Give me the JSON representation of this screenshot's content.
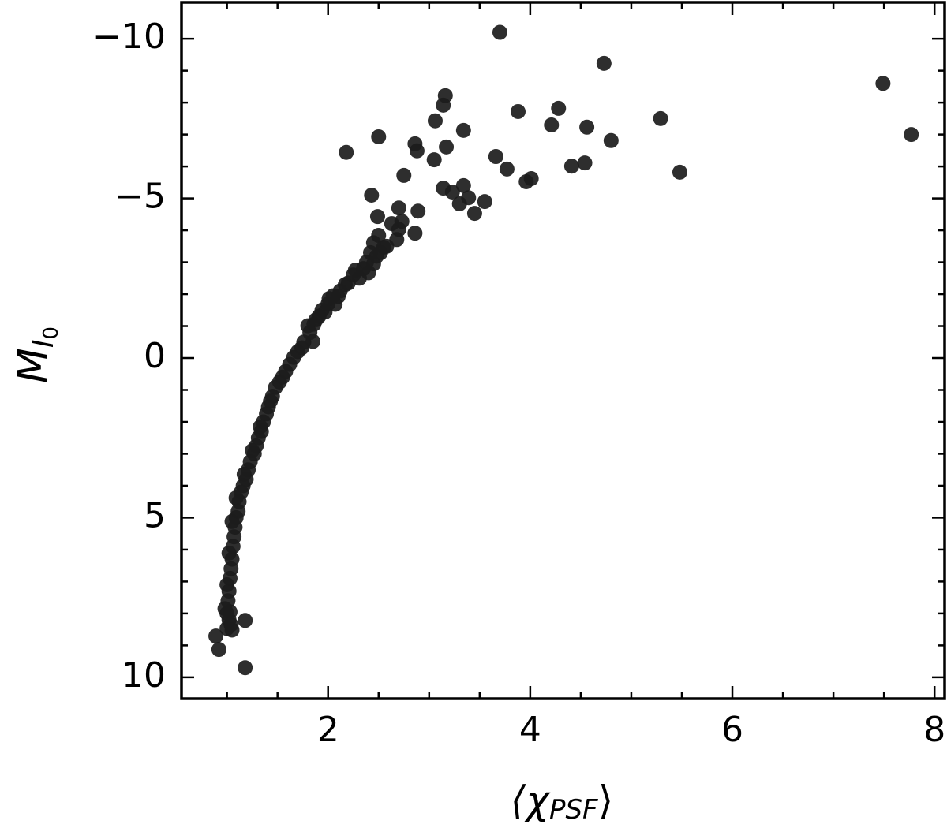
{
  "chart_data": {
    "type": "scatter",
    "xlabel": [
      "⟨χ",
      "PSF",
      "⟩"
    ],
    "ylabel": [
      "M",
      "I",
      "0"
    ],
    "color": "#1c1c1c",
    "xlim": [
      0.55,
      8.1
    ],
    "ylim": [
      10.67,
      -11.14
    ],
    "xticks": [
      2,
      4,
      6,
      8
    ],
    "yticks": [
      {
        "value": -10,
        "label": "−10"
      },
      {
        "value": -5,
        "label": "−5"
      },
      0,
      5,
      10
    ],
    "xminorticks": [
      1,
      1.5,
      2.5,
      3,
      3.5,
      4.5,
      5,
      5.5,
      6.5,
      7,
      7.5
    ],
    "yminorticks": [
      -9,
      -8,
      -7,
      -6,
      -4,
      -3,
      -2,
      -1,
      1,
      2,
      3,
      4,
      6,
      7,
      8,
      9
    ],
    "x": [
      3.7,
      4.73,
      7.49,
      7.77,
      5.29,
      5.48,
      4.8,
      4.56,
      4.54,
      4.41,
      4.28,
      4.21,
      3.88,
      4.01,
      3.96,
      3.77,
      3.66,
      3.55,
      3.45,
      3.39,
      3.34,
      3.3,
      3.34,
      3.16,
      3.14,
      3.17,
      3.06,
      3.05,
      3.14,
      3.23,
      2.18,
      2.5,
      2.86,
      2.88,
      2.75,
      2.43,
      2.49,
      2.7,
      2.89,
      2.63,
      2.73,
      2.7,
      2.86,
      2.68,
      2.5,
      2.45,
      2.55,
      2.48,
      2.45,
      2.4,
      2.27,
      2.31,
      2.17,
      2.1,
      2.01,
      2.07,
      1.97,
      1.91,
      1.86,
      1.8,
      1.85,
      1.74,
      1.66,
      1.58,
      1.48,
      1.41,
      1.33,
      1.25,
      1.17,
      1.09,
      1.05,
      1.02,
      1.0,
      0.98,
      1.0,
      1.05,
      0.89,
      0.92,
      1.18,
      1.18,
      1.62,
      1.55,
      1.52,
      1.45,
      1.43,
      1.39,
      1.36,
      1.34,
      1.31,
      1.29,
      1.27,
      1.23,
      1.21,
      1.19,
      1.16,
      1.14,
      1.12,
      1.11,
      1.09,
      1.08,
      1.07,
      1.06,
      1.05,
      1.04,
      1.03,
      1.02,
      1.01,
      1.0,
      1.02,
      1.03,
      1.04,
      1.7,
      1.76,
      1.82,
      1.88,
      1.94,
      2.0,
      2.05,
      2.12,
      2.2,
      2.25,
      2.35,
      2.38,
      2.42,
      2.52,
      2.58
    ],
    "values": [
      -10.2,
      -9.23,
      -8.6,
      -7.0,
      -7.5,
      -5.82,
      -6.81,
      -7.23,
      -6.11,
      -6.01,
      -7.82,
      -7.3,
      -7.72,
      -5.62,
      -5.52,
      -5.92,
      -6.31,
      -4.9,
      -4.53,
      -5.02,
      -5.4,
      -4.83,
      -7.13,
      -8.22,
      -7.92,
      -6.61,
      -7.43,
      -6.21,
      -5.32,
      -5.2,
      -6.44,
      -6.93,
      -6.71,
      -6.49,
      -5.72,
      -5.1,
      -4.43,
      -4.7,
      -4.6,
      -4.21,
      -4.28,
      -4.03,
      -3.91,
      -3.71,
      -3.84,
      -3.61,
      -3.47,
      -3.19,
      -2.95,
      -2.67,
      -2.75,
      -2.5,
      -2.3,
      -1.93,
      -1.86,
      -1.68,
      -1.44,
      -1.31,
      -1.06,
      -1.01,
      -0.52,
      -0.32,
      -0.02,
      0.42,
      0.92,
      1.53,
      2.15,
      2.9,
      3.64,
      4.38,
      5.12,
      6.11,
      7.1,
      7.85,
      8.47,
      8.52,
      8.71,
      9.13,
      8.22,
      9.7,
      0.2,
      0.6,
      0.75,
      1.2,
      1.35,
      1.75,
      2.0,
      2.3,
      2.5,
      2.75,
      3.0,
      3.25,
      3.5,
      3.8,
      4.0,
      4.2,
      4.5,
      4.8,
      5.0,
      5.3,
      5.6,
      5.9,
      6.3,
      6.6,
      6.9,
      7.3,
      7.6,
      8.0,
      8.2,
      7.95,
      8.35,
      -0.2,
      -0.5,
      -0.8,
      -1.2,
      -1.5,
      -1.7,
      -1.95,
      -2.1,
      -2.35,
      -2.6,
      -2.8,
      -3.0,
      -3.3,
      -3.3,
      -3.5
    ]
  }
}
